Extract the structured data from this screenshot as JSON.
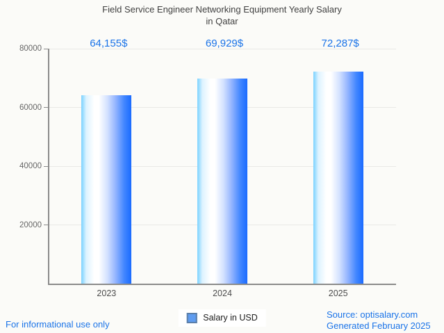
{
  "title": {
    "line1": "Field Service Engineer Networking Equipment Yearly Salary",
    "line2": "in Qatar"
  },
  "chart_data": {
    "type": "bar",
    "title": "Field Service Engineer Networking Equipment Yearly Salary in Qatar",
    "categories": [
      "2023",
      "2024",
      "2025"
    ],
    "values": [
      64155,
      69929,
      72287
    ],
    "value_labels": [
      "64,155$",
      "69,929$",
      "72,287$"
    ],
    "series": [
      {
        "name": "Salary in USD",
        "values": [
          64155,
          69929,
          72287
        ]
      }
    ],
    "xlabel": "",
    "ylabel": "",
    "ylim": [
      0,
      80000
    ],
    "yticks": [
      20000,
      40000,
      60000,
      80000
    ],
    "ytick_labels": [
      "20000",
      "40000",
      "60000",
      "80000"
    ],
    "grid": true,
    "legend_position": "bottom-center",
    "bar_style": "horizontal blue-white-blue gradient"
  },
  "legend": {
    "label": "Salary in USD"
  },
  "footer": {
    "disclaimer": "For informational use only",
    "source": "Source: optisalary.com",
    "generated": "Generated February 2025"
  },
  "colors": {
    "accent_blue": "#1a73e8",
    "title_text": "#3f3f3f",
    "axis_text": "#666666",
    "background": "#fbfbf8",
    "bar_gradient": [
      "#7ad2ff",
      "#ffffff",
      "#1a6bff"
    ],
    "legend_marker_fill": "#5f9cf0",
    "legend_marker_border": "#5b7ea8"
  }
}
